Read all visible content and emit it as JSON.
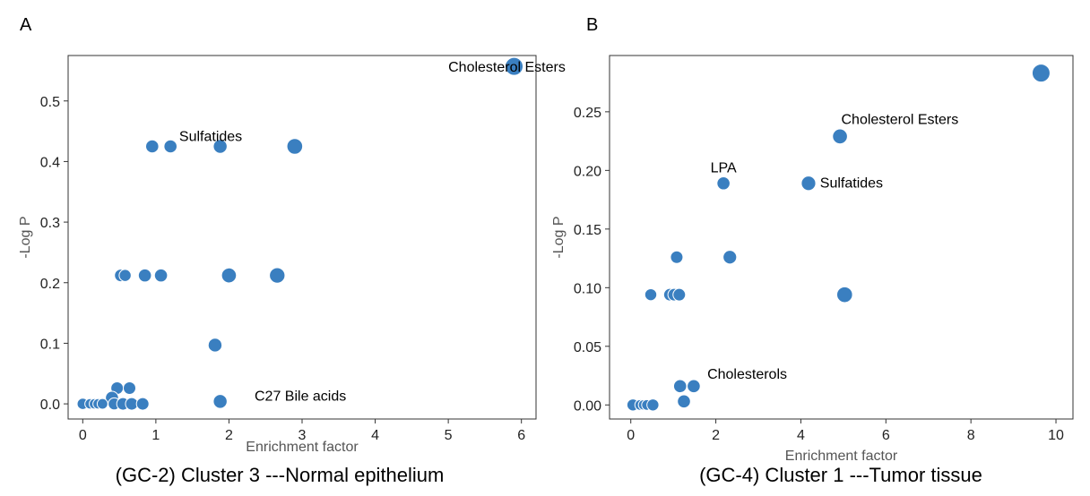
{
  "chart_data": [
    {
      "type": "scatter",
      "panel_label": "A",
      "caption": "(GC-2) Cluster 3  ---Normal epithelium",
      "xlabel": "Enrichment factor",
      "ylabel": "-Log P",
      "xlim": [
        -0.2,
        6.2
      ],
      "ylim": [
        -0.025,
        0.575
      ],
      "xticks": [
        0,
        1,
        2,
        3,
        4,
        5,
        6
      ],
      "yticks": [
        0.0,
        0.1,
        0.2,
        0.3,
        0.4,
        0.5
      ],
      "xtick_labels": [
        "0",
        "1",
        "2",
        "3",
        "4",
        "5",
        "6"
      ],
      "ytick_labels": [
        "0.0",
        "0.1",
        "0.2",
        "0.3",
        "0.4",
        "0.5"
      ],
      "color": "#3a7fc0",
      "points": [
        {
          "x": 5.9,
          "y": 0.557,
          "size": 1.0
        },
        {
          "x": 0.95,
          "y": 0.425,
          "size": 0.55
        },
        {
          "x": 1.2,
          "y": 0.425,
          "size": 0.55
        },
        {
          "x": 1.88,
          "y": 0.425,
          "size": 0.62
        },
        {
          "x": 2.9,
          "y": 0.425,
          "size": 0.8
        },
        {
          "x": 0.52,
          "y": 0.212,
          "size": 0.5
        },
        {
          "x": 0.58,
          "y": 0.212,
          "size": 0.45
        },
        {
          "x": 0.85,
          "y": 0.212,
          "size": 0.55
        },
        {
          "x": 1.07,
          "y": 0.212,
          "size": 0.55
        },
        {
          "x": 2.0,
          "y": 0.212,
          "size": 0.72
        },
        {
          "x": 2.66,
          "y": 0.212,
          "size": 0.78
        },
        {
          "x": 1.81,
          "y": 0.097,
          "size": 0.62
        },
        {
          "x": 0.47,
          "y": 0.026,
          "size": 0.5
        },
        {
          "x": 0.64,
          "y": 0.026,
          "size": 0.5
        },
        {
          "x": 0.4,
          "y": 0.01,
          "size": 0.55
        },
        {
          "x": 1.88,
          "y": 0.004,
          "size": 0.62
        },
        {
          "x": 0.0,
          "y": 0.0,
          "size": 0.38
        },
        {
          "x": 0.1,
          "y": 0.0,
          "size": 0.3
        },
        {
          "x": 0.16,
          "y": 0.0,
          "size": 0.3
        },
        {
          "x": 0.21,
          "y": 0.0,
          "size": 0.3
        },
        {
          "x": 0.27,
          "y": 0.0,
          "size": 0.32
        },
        {
          "x": 0.43,
          "y": 0.0,
          "size": 0.45
        },
        {
          "x": 0.55,
          "y": 0.0,
          "size": 0.5
        },
        {
          "x": 0.67,
          "y": 0.0,
          "size": 0.5
        },
        {
          "x": 0.82,
          "y": 0.0,
          "size": 0.5
        }
      ],
      "annotations": [
        {
          "text": "Cholesterol Esters",
          "x": 5.0,
          "y": 0.557
        },
        {
          "text": "Sulfatides",
          "x": 1.75,
          "y": 0.443
        },
        {
          "text": "C27 Bile acids",
          "x": 2.35,
          "y": 0.014
        }
      ]
    },
    {
      "type": "scatter",
      "panel_label": "B",
      "caption": "(GC-4) Cluster 1 ---Tumor tissue",
      "xlabel": "Enrichment factor",
      "ylabel": "-Log P",
      "xlim": [
        -0.5,
        10.4
      ],
      "ylim": [
        -0.012,
        0.298
      ],
      "xticks": [
        0,
        2,
        4,
        6,
        8,
        10
      ],
      "yticks": [
        0.0,
        0.05,
        0.1,
        0.15,
        0.2,
        0.25
      ],
      "xtick_labels": [
        "0",
        "2",
        "4",
        "6",
        "8",
        "10"
      ],
      "ytick_labels": [
        "0.00",
        "0.05",
        "0.10",
        "0.15",
        "0.20",
        "0.25"
      ],
      "color": "#3a7fc0",
      "points": [
        {
          "x": 9.65,
          "y": 0.283,
          "size": 1.0
        },
        {
          "x": 4.92,
          "y": 0.229,
          "size": 0.72
        },
        {
          "x": 2.18,
          "y": 0.189,
          "size": 0.55
        },
        {
          "x": 4.18,
          "y": 0.189,
          "size": 0.68
        },
        {
          "x": 1.08,
          "y": 0.126,
          "size": 0.5
        },
        {
          "x": 2.33,
          "y": 0.126,
          "size": 0.6
        },
        {
          "x": 0.47,
          "y": 0.094,
          "size": 0.45
        },
        {
          "x": 0.92,
          "y": 0.094,
          "size": 0.5
        },
        {
          "x": 1.02,
          "y": 0.094,
          "size": 0.5
        },
        {
          "x": 1.14,
          "y": 0.094,
          "size": 0.5
        },
        {
          "x": 5.03,
          "y": 0.094,
          "size": 0.8
        },
        {
          "x": 1.16,
          "y": 0.016,
          "size": 0.55
        },
        {
          "x": 1.48,
          "y": 0.016,
          "size": 0.55
        },
        {
          "x": 1.25,
          "y": 0.003,
          "size": 0.55
        },
        {
          "x": 0.05,
          "y": 0.0,
          "size": 0.45
        },
        {
          "x": 0.22,
          "y": 0.0,
          "size": 0.32
        },
        {
          "x": 0.3,
          "y": 0.0,
          "size": 0.3
        },
        {
          "x": 0.38,
          "y": 0.0,
          "size": 0.32
        },
        {
          "x": 0.52,
          "y": 0.0,
          "size": 0.45
        }
      ],
      "annotations": [
        {
          "text": "Cholesterol Esters",
          "x": 4.95,
          "y": 0.244
        },
        {
          "text": "LPA",
          "x": 2.18,
          "y": 0.203
        },
        {
          "text": "Sulfatides",
          "x": 4.45,
          "y": 0.19
        },
        {
          "text": "Cholesterols",
          "x": 1.8,
          "y": 0.027
        }
      ]
    }
  ]
}
